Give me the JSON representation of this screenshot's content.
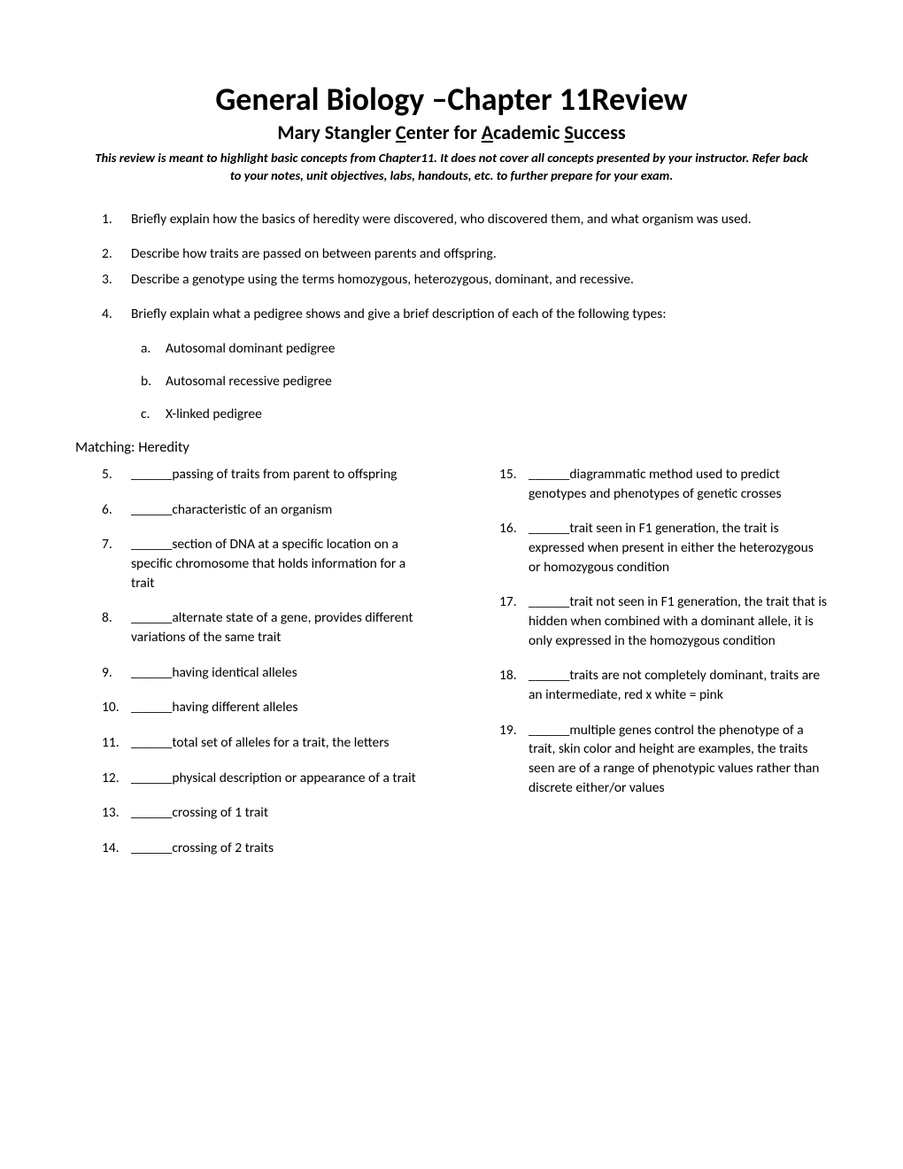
{
  "title": "General Biology –Chapter 11Review",
  "subtitle_parts": {
    "p1": "Mary Stangler ",
    "c": "C",
    "p2": "enter for ",
    "a": "A",
    "p3": "cademic ",
    "s": "S",
    "p4": "uccess"
  },
  "disclaimer": "This review is meant to highlight basic concepts from Chapter11. It does not cover all concepts presented by your instructor. Refer back to your notes, unit objectives, labs, handouts, etc. to further prepare for your exam.",
  "questions": [
    {
      "num": "1.",
      "text": "Briefly explain how the basics of heredity were discovered, who discovered them, and what organism was used."
    },
    {
      "num": "2.",
      "text": "Describe how traits are passed on between parents and offspring."
    },
    {
      "num": "3.",
      "text": "Describe a genotype using the terms homozygous, heterozygous, dominant, and recessive."
    },
    {
      "num": "4.",
      "text": "Briefly explain what a pedigree shows and give a brief description of each of the following types:"
    }
  ],
  "sub_items": [
    {
      "letter": "a.",
      "text": "Autosomal dominant pedigree"
    },
    {
      "letter": "b.",
      "text": "Autosomal recessive pedigree"
    },
    {
      "letter": "c.",
      "text": "X-linked pedigree"
    }
  ],
  "section_heading": "Matching: Heredity",
  "blank": "______",
  "left_items": [
    {
      "num": "5.",
      "text": "passing of traits from parent to offspring"
    },
    {
      "num": "6.",
      "text": "characteristic of an organism"
    },
    {
      "num": "7.",
      "text": "section of DNA at a specific location on a specific chromosome that holds information for a trait"
    },
    {
      "num": "8.",
      "text": "alternate state of a gene, provides different variations of the same trait"
    },
    {
      "num": "9.",
      "text": "having identical alleles"
    },
    {
      "num": "10.",
      "text": "having different alleles"
    },
    {
      "num": "11.",
      "text": "total set of alleles for a trait, the letters"
    },
    {
      "num": "12.",
      "text": "physical description or appearance of a trait"
    },
    {
      "num": "13.",
      "text": "crossing of 1 trait"
    },
    {
      "num": "14.",
      "text": "crossing of 2 traits"
    }
  ],
  "right_items": [
    {
      "num": "15.",
      "text": "diagrammatic method used to predict genotypes and phenotypes of genetic crosses"
    },
    {
      "num": "16.",
      "text": "trait seen in F1 generation, the trait is expressed when present in either the heterozygous or homozygous condition"
    },
    {
      "num": "17.",
      "text": "trait not seen in F1 generation, the trait that is hidden when combined with a dominant allele, it is only expressed in the homozygous condition"
    },
    {
      "num": "18.",
      "text": "traits are not completely dominant, traits are an intermediate, red x white = pink"
    },
    {
      "num": "19.",
      "text": "multiple genes control the phenotype of a trait, skin color and height are examples, the traits seen are of a range of phenotypic values rather than discrete either/or values"
    }
  ],
  "colors": {
    "text": "#000000",
    "background": "#ffffff"
  },
  "typography": {
    "title_fontsize": 36,
    "subtitle_fontsize": 22,
    "body_fontsize": 15.5,
    "disclaimer_fontsize": 14.5,
    "heading_fontsize": 16.5,
    "font_family": "Calibri"
  }
}
